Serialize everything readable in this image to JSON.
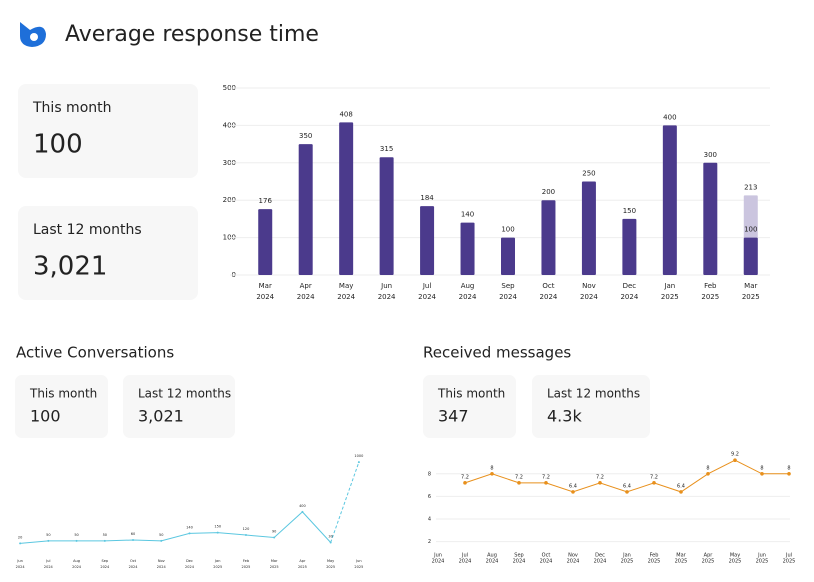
{
  "header": {
    "title": "Average response time"
  },
  "summary": [
    {
      "label": "This month",
      "value": "100"
    },
    {
      "label": "Last 12 months",
      "value": "3,021"
    }
  ],
  "active_conversations": {
    "title": "Active Conversations",
    "cards": [
      {
        "label": "This month",
        "value": "100"
      },
      {
        "label": "Last 12 months",
        "value": "3,021"
      }
    ]
  },
  "received_messages": {
    "title": "Received messages",
    "cards": [
      {
        "label": "This month",
        "value": "347"
      },
      {
        "label": "Last 12 months",
        "value": "4.3k"
      }
    ]
  },
  "chart_data": [
    {
      "type": "bar",
      "categories": [
        [
          "Mar",
          "2024"
        ],
        [
          "Apr",
          "2024"
        ],
        [
          "May",
          "2024"
        ],
        [
          "Jun",
          "2024"
        ],
        [
          "Jul",
          "2024"
        ],
        [
          "Aug",
          "2024"
        ],
        [
          "Sep",
          "2024"
        ],
        [
          "Oct",
          "2024"
        ],
        [
          "Nov",
          "2024"
        ],
        [
          "Dec",
          "2024"
        ],
        [
          "Jan",
          "2025"
        ],
        [
          "Feb",
          "2025"
        ],
        [
          "Mar",
          "2025"
        ]
      ],
      "values": [
        176,
        350,
        408,
        315,
        184,
        140,
        100,
        200,
        250,
        150,
        400,
        300,
        100
      ],
      "overlay_values": [
        null,
        null,
        null,
        null,
        null,
        null,
        null,
        null,
        null,
        null,
        null,
        null,
        213
      ],
      "color": "#4b3a8c",
      "overlay_color": "#cbc5df",
      "ylim": [
        0,
        500
      ],
      "yticks": [
        0,
        100,
        200,
        300,
        400,
        500
      ],
      "grid": true
    },
    {
      "type": "line",
      "categories": [
        [
          "Jun",
          "2024"
        ],
        [
          "Jul",
          "2024"
        ],
        [
          "Aug",
          "2024"
        ],
        [
          "Sep",
          "2024"
        ],
        [
          "Oct",
          "2024"
        ],
        [
          "Nov",
          "2024"
        ],
        [
          "Dec",
          "2024"
        ],
        [
          "Jan",
          "2025"
        ],
        [
          "Feb",
          "2025"
        ],
        [
          "Mar",
          "2025"
        ],
        [
          "Apr",
          "2025"
        ],
        [
          "May",
          "2025"
        ],
        [
          "Jun",
          "2025"
        ]
      ],
      "values": [
        20,
        50,
        50,
        50,
        60,
        50,
        140,
        150,
        120,
        90,
        400,
        30,
        1000
      ],
      "color": "#5bc7e0",
      "dashed_from": 11,
      "ylim": [
        0,
        1050
      ]
    },
    {
      "type": "line",
      "categories": [
        [
          "Jun",
          "2024"
        ],
        [
          "Jul",
          "2024"
        ],
        [
          "Aug",
          "2024"
        ],
        [
          "Sep",
          "2024"
        ],
        [
          "Oct",
          "2024"
        ],
        [
          "Nov",
          "2024"
        ],
        [
          "Dec",
          "2024"
        ],
        [
          "Jan",
          "2025"
        ],
        [
          "Feb",
          "2025"
        ],
        [
          "Mar",
          "2025"
        ],
        [
          "Apr",
          "2025"
        ],
        [
          "May",
          "2025"
        ],
        [
          "Jun",
          "2025"
        ],
        [
          "Jul",
          "2025"
        ]
      ],
      "values": [
        null,
        7.2,
        8.0,
        7.2,
        7.2,
        6.4,
        7.2,
        6.4,
        7.2,
        6.4,
        8.0,
        9.2,
        8.0,
        8.0
      ],
      "color": "#e8901c",
      "ylim": [
        1,
        9.6
      ],
      "yticks": [
        2,
        4,
        6,
        8
      ],
      "grid": true
    }
  ]
}
